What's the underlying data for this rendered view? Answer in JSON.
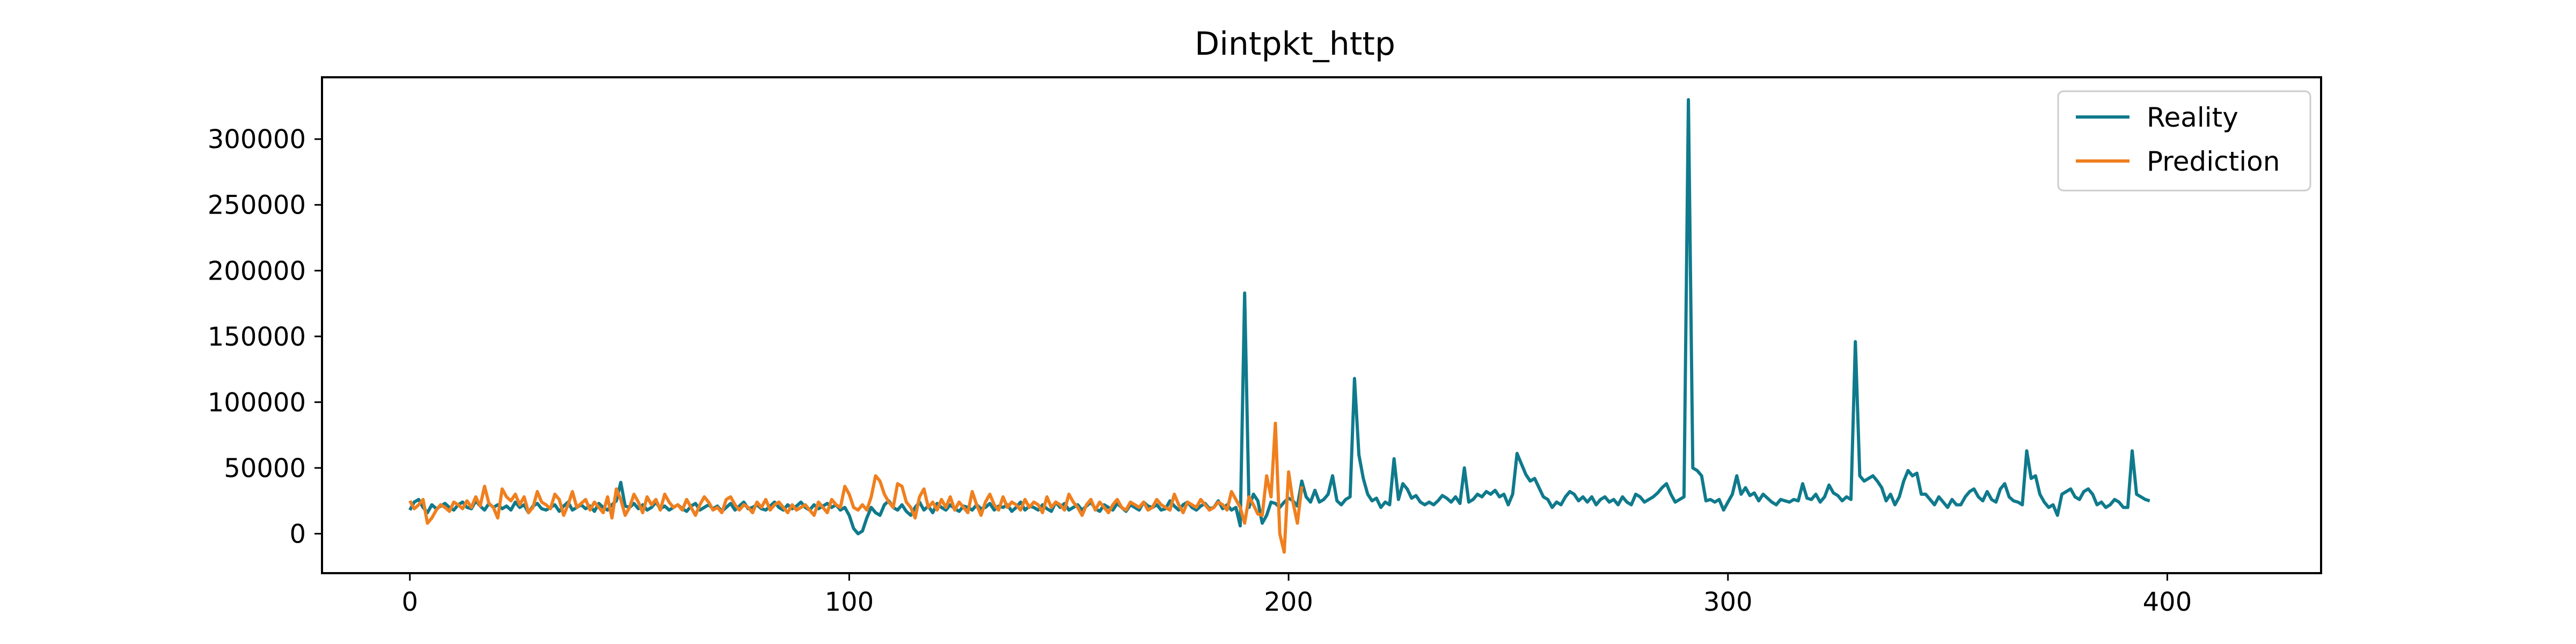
{
  "chart_data": {
    "type": "line",
    "title": "Dintpkt_http",
    "xlabel": "",
    "ylabel": "",
    "xlim": [
      -20,
      435
    ],
    "ylim": [
      -30000,
      347000
    ],
    "xticks": [
      0,
      100,
      200,
      300,
      400
    ],
    "yticks": [
      0,
      50000,
      100000,
      150000,
      200000,
      250000,
      300000
    ],
    "grid": false,
    "legend_position": "upper right",
    "series": [
      {
        "name": "Reality",
        "color": "#0f7a8c",
        "x_start": 0,
        "values": [
          18000,
          24000,
          26000,
          20000,
          16000,
          22000,
          19000,
          21000,
          23000,
          20000,
          18000,
          22000,
          24000,
          20000,
          19000,
          25000,
          21000,
          18000,
          23000,
          20000,
          22000,
          19000,
          21000,
          18000,
          24000,
          20000,
          22000,
          16000,
          21000,
          23000,
          19000,
          18000,
          20000,
          22000,
          17000,
          21000,
          24000,
          18000,
          20000,
          22000,
          19000,
          21000,
          17000,
          23000,
          20000,
          18000,
          22000,
          25000,
          39000,
          21000,
          20000,
          23000,
          19000,
          22000,
          18000,
          20000,
          24000,
          19000,
          21000,
          18000,
          20000,
          22000,
          19000,
          17000,
          21000,
          23000,
          18000,
          20000,
          22000,
          19000,
          21000,
          17000,
          20000,
          23000,
          18000,
          21000,
          24000,
          19000,
          20000,
          22000,
          19000,
          18000,
          21000,
          24000,
          20000,
          18000,
          22000,
          19000,
          21000,
          24000,
          20000,
          18000,
          22000,
          19000,
          21000,
          23000,
          20000,
          22000,
          18000,
          20000,
          14000,
          4000,
          0,
          2000,
          12000,
          20000,
          16000,
          14000,
          22000,
          25000,
          20000,
          18000,
          22000,
          17000,
          14000,
          20000,
          24000,
          18000,
          21000,
          16000,
          23000,
          20000,
          18000,
          22000,
          19000,
          17000,
          21000,
          20000,
          18000,
          22000,
          19000,
          20000,
          23000,
          18000,
          21000,
          20000,
          22000,
          17000,
          20000,
          24000,
          18000,
          21000,
          20000,
          18000,
          22000,
          19000,
          17000,
          24000,
          20000,
          23000,
          18000,
          20000,
          22000,
          18000,
          21000,
          24000,
          19000,
          17000,
          22000,
          20000,
          18000,
          23000,
          20000,
          17000,
          22000,
          20000,
          18000,
          24000,
          21000,
          20000,
          22000,
          18000,
          19000,
          25000,
          21000,
          18000,
          22000,
          24000,
          20000,
          18000,
          21000,
          23000,
          19000,
          20000,
          25000,
          19000,
          22000,
          18000,
          20000,
          6000,
          183000,
          20000,
          30000,
          25000,
          8000,
          14000,
          24000,
          23000,
          20000,
          24000,
          27000,
          25000,
          21000,
          40000,
          28000,
          24000,
          33000,
          24000,
          26000,
          30000,
          44000,
          25000,
          22000,
          26000,
          28000,
          118000,
          60000,
          42000,
          30000,
          25000,
          27000,
          20000,
          24000,
          22000,
          57000,
          26000,
          38000,
          34000,
          27000,
          29000,
          24000,
          22000,
          24000,
          22000,
          25000,
          29000,
          27000,
          24000,
          28000,
          23000,
          50000,
          24000,
          26000,
          30000,
          28000,
          32000,
          30000,
          33000,
          28000,
          30000,
          22000,
          30000,
          61000,
          53000,
          45000,
          40000,
          42000,
          35000,
          28000,
          26000,
          20000,
          24000,
          22000,
          28000,
          32000,
          30000,
          25000,
          28000,
          24000,
          28000,
          22000,
          26000,
          28000,
          24000,
          26000,
          22000,
          28000,
          24000,
          22000,
          30000,
          28000,
          24000,
          26000,
          28000,
          31000,
          35000,
          38000,
          30000,
          24000,
          26000,
          28000,
          330000,
          50000,
          48000,
          44000,
          25000,
          26000,
          24000,
          26000,
          18000,
          24000,
          30000,
          44000,
          30000,
          35000,
          29000,
          31000,
          25000,
          30000,
          27000,
          24000,
          22000,
          26000,
          25000,
          24000,
          26000,
          25000,
          38000,
          27000,
          26000,
          30000,
          24000,
          28000,
          37000,
          31000,
          29000,
          25000,
          28000,
          26000,
          146000,
          44000,
          40000,
          42000,
          44000,
          40000,
          35000,
          25000,
          30000,
          22000,
          28000,
          40000,
          48000,
          44000,
          46000,
          30000,
          30000,
          26000,
          22000,
          28000,
          24000,
          20000,
          26000,
          22000,
          22000,
          28000,
          32000,
          34000,
          28000,
          25000,
          32000,
          26000,
          24000,
          34000,
          38000,
          28000,
          25000,
          24000,
          22000,
          63000,
          42000,
          44000,
          30000,
          24000,
          20000,
          22000,
          14000,
          30000,
          32000,
          34000,
          28000,
          26000,
          32000,
          34000,
          30000,
          22000,
          24000,
          20000,
          22000,
          26000,
          24000,
          20000,
          20000,
          63000,
          30000,
          28000,
          26000,
          25000
        ]
      },
      {
        "name": "Prediction",
        "color": "#f07f1e",
        "x_start": 0,
        "values": [
          25000,
          19000,
          22000,
          26000,
          8000,
          12000,
          18000,
          22000,
          20000,
          17000,
          24000,
          22000,
          19000,
          25000,
          20000,
          28000,
          21000,
          36000,
          23000,
          20000,
          12000,
          34000,
          28000,
          25000,
          30000,
          22000,
          28000,
          16000,
          20000,
          32000,
          24000,
          22000,
          19000,
          30000,
          26000,
          14000,
          22000,
          32000,
          20000,
          23000,
          26000,
          18000,
          24000,
          20000,
          16000,
          28000,
          12000,
          34000,
          26000,
          14000,
          20000,
          30000,
          24000,
          16000,
          28000,
          22000,
          26000,
          18000,
          30000,
          24000,
          20000,
          22000,
          18000,
          26000,
          20000,
          14000,
          22000,
          28000,
          24000,
          18000,
          20000,
          16000,
          26000,
          28000,
          22000,
          18000,
          22000,
          20000,
          16000,
          24000,
          20000,
          26000,
          18000,
          22000,
          24000,
          20000,
          16000,
          22000,
          18000,
          20000,
          22000,
          18000,
          14000,
          24000,
          20000,
          16000,
          26000,
          22000,
          20000,
          36000,
          30000,
          20000,
          18000,
          22000,
          18000,
          28000,
          44000,
          40000,
          30000,
          24000,
          20000,
          38000,
          36000,
          24000,
          20000,
          12000,
          28000,
          34000,
          20000,
          24000,
          18000,
          26000,
          20000,
          28000,
          18000,
          24000,
          20000,
          16000,
          32000,
          22000,
          14000,
          24000,
          30000,
          22000,
          18000,
          28000,
          20000,
          24000,
          22000,
          18000,
          26000,
          20000,
          24000,
          22000,
          16000,
          28000,
          20000,
          24000,
          22000,
          18000,
          30000,
          24000,
          20000,
          14000,
          22000,
          26000,
          18000,
          24000,
          20000,
          16000,
          22000,
          26000,
          20000,
          18000,
          24000,
          22000,
          20000,
          24000,
          18000,
          20000,
          26000,
          22000,
          20000,
          18000,
          30000,
          22000,
          16000,
          24000,
          22000,
          20000,
          26000,
          22000,
          18000,
          20000,
          24000,
          22000,
          18000,
          32000,
          26000,
          20000,
          8000,
          28000,
          22000,
          15000,
          14000,
          44000,
          28000,
          84000,
          0,
          -14000,
          47000,
          24000,
          8000,
          36000
        ]
      }
    ]
  }
}
